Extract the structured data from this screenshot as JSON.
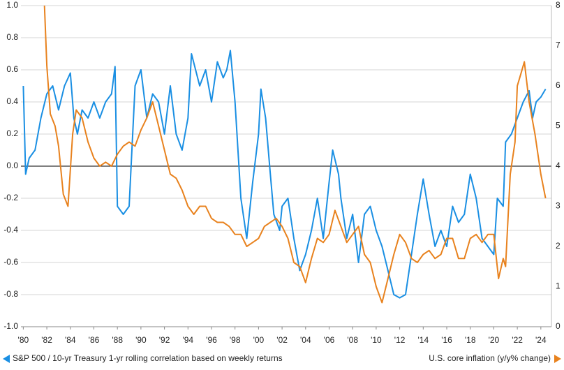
{
  "chart_data": {
    "type": "line",
    "xlim": [
      1979.8,
      2024.9
    ],
    "xticks": [
      {
        "value": 1980,
        "label": "'80"
      },
      {
        "value": 1982,
        "label": "'82"
      },
      {
        "value": 1984,
        "label": "'84"
      },
      {
        "value": 1986,
        "label": "'86"
      },
      {
        "value": 1988,
        "label": "'88"
      },
      {
        "value": 1990,
        "label": "'90"
      },
      {
        "value": 1992,
        "label": "'92"
      },
      {
        "value": 1994,
        "label": "'94"
      },
      {
        "value": 1996,
        "label": "'96"
      },
      {
        "value": 1998,
        "label": "'98"
      },
      {
        "value": 2000,
        "label": "'00"
      },
      {
        "value": 2002,
        "label": "'02"
      },
      {
        "value": 2004,
        "label": "'04"
      },
      {
        "value": 2006,
        "label": "'06"
      },
      {
        "value": 2008,
        "label": "'08"
      },
      {
        "value": 2010,
        "label": "'10"
      },
      {
        "value": 2012,
        "label": "'12"
      },
      {
        "value": 2014,
        "label": "'14"
      },
      {
        "value": 2016,
        "label": "'16"
      },
      {
        "value": 2018,
        "label": "'18"
      },
      {
        "value": 2020,
        "label": "'20"
      },
      {
        "value": 2022,
        "label": "'22"
      },
      {
        "value": 2024,
        "label": "'24"
      }
    ],
    "ylim": [
      -1,
      1
    ],
    "yticks": [
      {
        "value": -1,
        "label": "-1.0"
      },
      -0.8,
      -0.6,
      -0.4,
      -0.2,
      {
        "value": 0,
        "label": "0.0"
      },
      0.2,
      0.4,
      0.6,
      0.8,
      {
        "value": 1,
        "label": "1.0"
      }
    ],
    "y2lim": [
      0,
      8
    ],
    "y2ticks": [
      0,
      1,
      2,
      3,
      4,
      5,
      6,
      7,
      8
    ],
    "grid": true,
    "series": [
      {
        "name": "S&P 500 / 10-yr Treasury 1-yr rolling correlation based on weekly returns",
        "color": "#1a8fe3",
        "x": [
          1980,
          1980.2,
          1980.5,
          1981,
          1981.5,
          1982,
          1982.5,
          1983,
          1983.5,
          1984,
          1984.3,
          1984.6,
          1985,
          1985.5,
          1986,
          1986.5,
          1987,
          1987.5,
          1987.8,
          1988,
          1988.5,
          1989,
          1989.5,
          1990,
          1990.5,
          1991,
          1991.5,
          1992,
          1992.5,
          1993,
          1993.5,
          1994,
          1994.3,
          1995,
          1995.5,
          1996,
          1996.5,
          1997,
          1997.3,
          1997.6,
          1998,
          1998.5,
          1999,
          1999.5,
          2000,
          2000.2,
          2000.6,
          2001,
          2001.3,
          2001.8,
          2002,
          2002.5,
          2003,
          2003.5,
          2004,
          2004.5,
          2005,
          2005.5,
          2006,
          2006.3,
          2006.8,
          2007,
          2007.5,
          2008,
          2008.5,
          2009,
          2009.5,
          2010,
          2010.5,
          2011,
          2011.5,
          2012,
          2012.5,
          2013,
          2013.5,
          2014,
          2014.5,
          2015,
          2015.5,
          2016,
          2016.5,
          2017,
          2017.5,
          2018,
          2018.5,
          2019,
          2019.5,
          2020,
          2020.3,
          2020.8,
          2021,
          2021.5,
          2022,
          2022.5,
          2023,
          2023.3,
          2023.6,
          2024,
          2024.4
        ],
        "values": [
          0.5,
          -0.05,
          0.05,
          0.1,
          0.3,
          0.45,
          0.5,
          0.35,
          0.5,
          0.58,
          0.3,
          0.2,
          0.35,
          0.3,
          0.4,
          0.3,
          0.4,
          0.45,
          0.62,
          -0.25,
          -0.3,
          -0.25,
          0.5,
          0.6,
          0.3,
          0.45,
          0.4,
          0.2,
          0.5,
          0.2,
          0.1,
          0.3,
          0.7,
          0.5,
          0.6,
          0.4,
          0.65,
          0.55,
          0.6,
          0.72,
          0.4,
          -0.2,
          -0.45,
          -0.1,
          0.2,
          0.48,
          0.3,
          -0.05,
          -0.3,
          -0.4,
          -0.25,
          -0.2,
          -0.45,
          -0.65,
          -0.55,
          -0.4,
          -0.2,
          -0.45,
          -0.1,
          0.1,
          -0.05,
          -0.2,
          -0.45,
          -0.3,
          -0.6,
          -0.3,
          -0.25,
          -0.4,
          -0.5,
          -0.65,
          -0.8,
          -0.82,
          -0.8,
          -0.55,
          -0.3,
          -0.08,
          -0.3,
          -0.5,
          -0.4,
          -0.5,
          -0.25,
          -0.35,
          -0.3,
          -0.05,
          -0.2,
          -0.45,
          -0.5,
          -0.55,
          -0.2,
          -0.25,
          0.15,
          0.2,
          0.3,
          0.4,
          0.47,
          0.3,
          0.4,
          0.43,
          0.48
        ]
      },
      {
        "name": "U.S. core inflation (y/y% change)",
        "color": "#e8821e",
        "axis": "y2",
        "x": [
          1981.8,
          1982,
          1982.3,
          1982.7,
          1983,
          1983.4,
          1983.8,
          1984.2,
          1984.5,
          1985,
          1985.5,
          1986,
          1986.5,
          1987,
          1987.5,
          1988,
          1988.5,
          1989,
          1989.5,
          1990,
          1990.5,
          1991,
          1991.5,
          1992,
          1992.5,
          1993,
          1993.5,
          1994,
          1994.5,
          1995,
          1995.5,
          1996,
          1996.5,
          1997,
          1997.5,
          1998,
          1998.5,
          1999,
          1999.5,
          2000,
          2000.5,
          2001,
          2001.5,
          2002,
          2002.5,
          2003,
          2003.5,
          2004,
          2004.5,
          2005,
          2005.5,
          2006,
          2006.5,
          2007,
          2007.5,
          2008,
          2008.5,
          2009,
          2009.5,
          2010,
          2010.5,
          2011,
          2011.5,
          2012,
          2012.5,
          2013,
          2013.5,
          2014,
          2014.5,
          2015,
          2015.5,
          2016,
          2016.5,
          2017,
          2017.5,
          2018,
          2018.5,
          2019,
          2019.5,
          2020,
          2020.4,
          2020.8,
          2021,
          2021.4,
          2021.8,
          2022,
          2022.3,
          2022.6,
          2023,
          2023.5,
          2024,
          2024.4
        ],
        "values": [
          8,
          6.5,
          5.3,
          5.0,
          4.5,
          3.3,
          3.0,
          4.8,
          5.4,
          5.2,
          4.6,
          4.2,
          4.0,
          4.1,
          4.0,
          4.3,
          4.5,
          4.6,
          4.5,
          4.9,
          5.2,
          5.6,
          5.0,
          4.4,
          3.8,
          3.7,
          3.4,
          3.0,
          2.8,
          3.0,
          3.0,
          2.7,
          2.6,
          2.6,
          2.5,
          2.3,
          2.3,
          2.0,
          2.1,
          2.2,
          2.5,
          2.6,
          2.7,
          2.5,
          2.2,
          1.6,
          1.5,
          1.1,
          1.7,
          2.2,
          2.1,
          2.3,
          2.9,
          2.5,
          2.1,
          2.3,
          2.5,
          1.8,
          1.6,
          1.0,
          0.6,
          1.2,
          1.8,
          2.3,
          2.1,
          1.7,
          1.6,
          1.8,
          1.9,
          1.7,
          1.8,
          2.2,
          2.2,
          1.7,
          1.7,
          2.2,
          2.3,
          2.1,
          2.3,
          2.3,
          1.2,
          1.7,
          1.5,
          3.8,
          4.6,
          6.0,
          6.3,
          6.6,
          5.6,
          4.8,
          3.8,
          3.2
        ]
      }
    ]
  }
}
